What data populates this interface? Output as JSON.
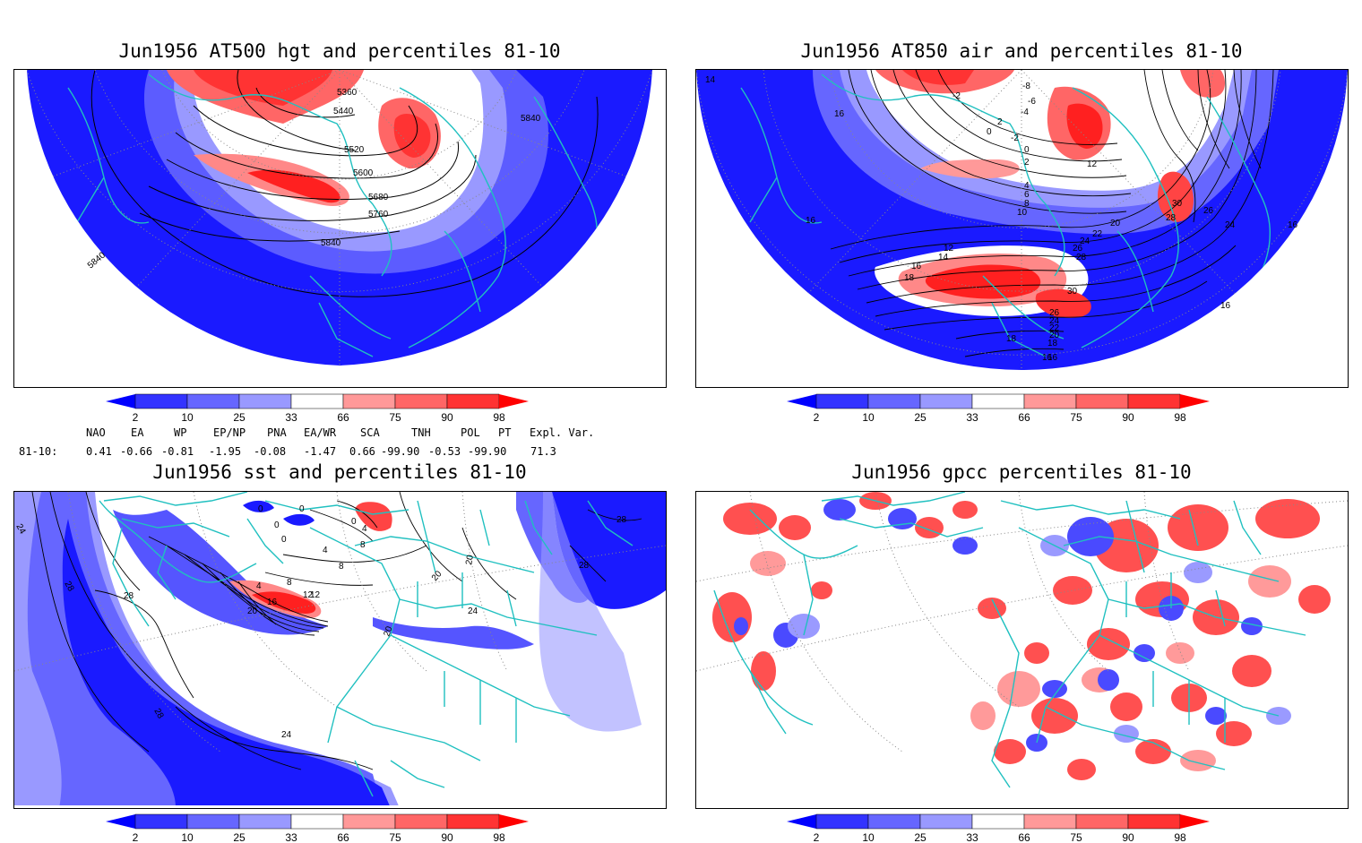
{
  "panels": [
    {
      "title": "Jun1956 AT500 hgt and percentiles 81-10",
      "contour_labels": [
        "5360",
        "5440",
        "5520",
        "5600",
        "5680",
        "5760",
        "5840",
        "5840",
        "5840"
      ]
    },
    {
      "title": "Jun1956 AT850 air and percentiles 81-10",
      "contour_labels": [
        "14",
        "16",
        "16",
        "16",
        "16",
        "-2",
        "0",
        "-2",
        "2",
        "4",
        "6",
        "8",
        "10",
        "12",
        "14",
        "12",
        "16",
        "18",
        "20",
        "22",
        "24",
        "26",
        "28",
        "30",
        "30",
        "28",
        "26",
        "24",
        "18",
        "16",
        "-8",
        "-6",
        "-4",
        "0",
        "2",
        "26",
        "24",
        "22",
        "20",
        "18",
        "16"
      ]
    },
    {
      "title": "Jun1956 sst and percentiles 81-10",
      "contour_labels": [
        "24",
        "28",
        "28",
        "0",
        "0",
        "0",
        "0",
        "0",
        "4",
        "4",
        "8",
        "4",
        "8",
        "12",
        "16",
        "20",
        "20",
        "20",
        "24",
        "24",
        "20",
        "28",
        "28",
        "28",
        "12",
        "8"
      ]
    },
    {
      "title": "Jun1956 gpcc percentiles 81-10",
      "contour_labels": []
    }
  ],
  "colorbar": {
    "labels": [
      "2",
      "10",
      "25",
      "33",
      "66",
      "75",
      "90",
      "98"
    ],
    "colors": [
      "#0000ff",
      "#3333ff",
      "#6666ff",
      "#9999ff",
      "#ffffff",
      "#ff9999",
      "#ff6666",
      "#ff3333",
      "#ff0000"
    ]
  },
  "indices": {
    "header": [
      "NAO",
      "EA",
      "WP",
      "EP/NP",
      "PNA",
      "EA/WR",
      "SCA",
      "TNH",
      "POL",
      "PT",
      "Expl. Var."
    ],
    "row_label": "81-10:",
    "values": [
      "0.41",
      "-0.66",
      "-0.81",
      "-1.95",
      "-0.08",
      "-1.47",
      "0.66",
      "-99.90",
      "-0.53",
      "-99.90",
      "71.3"
    ]
  },
  "map_colors": {
    "coast": "#20c0c0",
    "contour": "#000000",
    "grid": "#888888"
  }
}
